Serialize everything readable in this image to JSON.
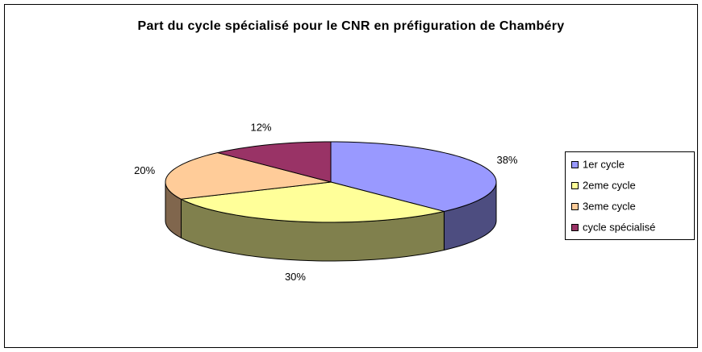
{
  "chart_data": {
    "type": "pie3d",
    "title": "Part du cycle spécialisé pour le CNR en préfiguration de Chambéry",
    "categories": [
      "1er cycle",
      "2eme cycle",
      "3eme cycle",
      "cycle spécialisé"
    ],
    "series": [
      {
        "values": [
          38,
          30,
          20,
          12
        ],
        "value_labels": [
          "38%",
          "30%",
          "20%",
          "12%"
        ],
        "colors": [
          "#9999ff",
          "#ffff99",
          "#ffcc99",
          "#993366"
        ]
      }
    ],
    "legend": "right"
  }
}
